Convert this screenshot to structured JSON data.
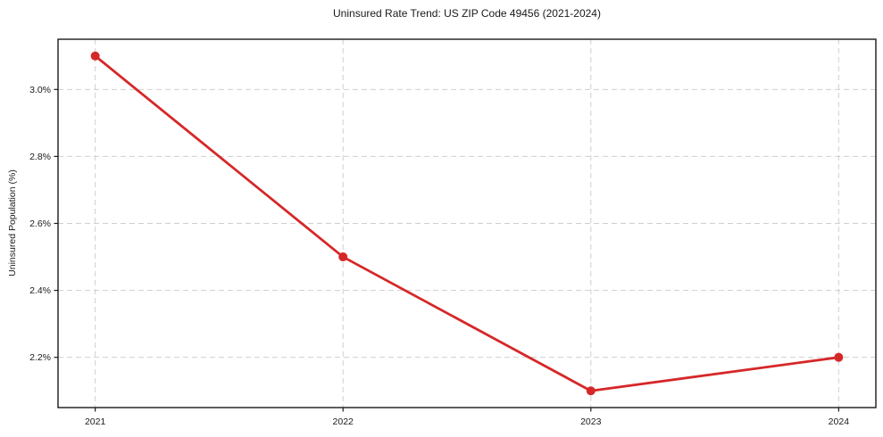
{
  "chart_data": {
    "type": "line",
    "title": "Uninsured Rate Trend: US ZIP Code 49456 (2021-2024)",
    "xlabel": "",
    "ylabel": "Uninsured Population (%)",
    "x": [
      2021,
      2022,
      2023,
      2024
    ],
    "x_tick_labels": [
      "2021",
      "2022",
      "2023",
      "2024"
    ],
    "series": [
      {
        "name": "uninsured-rate",
        "values": [
          3.1,
          2.5,
          2.1,
          2.2
        ],
        "color": "#d62728"
      }
    ],
    "y_tick_values": [
      2.2,
      2.4,
      2.6,
      2.8,
      3.0
    ],
    "y_tick_labels": [
      "2.2%",
      "2.4%",
      "2.6%",
      "2.8%",
      "3.0%"
    ],
    "xlim": [
      2020.85,
      2024.15
    ],
    "ylim": [
      2.05,
      3.15
    ],
    "grid": true,
    "grid_style": "dashed",
    "grid_color": "#cfcfcf",
    "axis_color": "#1a1a1a",
    "background": "#ffffff",
    "legend": "none",
    "marker": "circle"
  }
}
